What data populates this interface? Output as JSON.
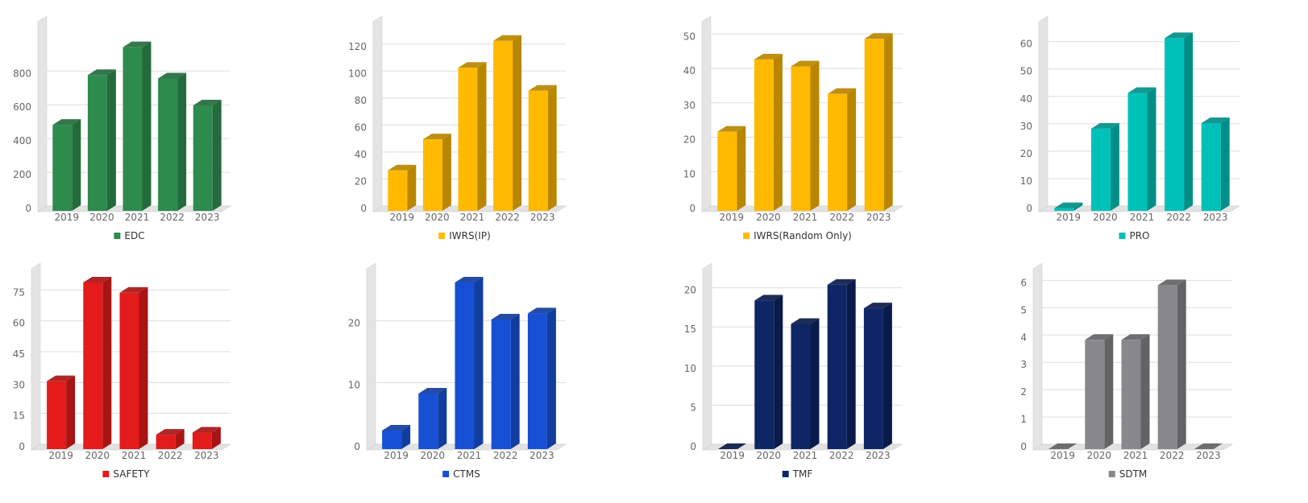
{
  "chart_data": [
    {
      "type": "bar",
      "legend": "EDC",
      "color": "#2e8b4e",
      "color_dark": "#236b3c",
      "categories": [
        "2019",
        "2020",
        "2021",
        "2022",
        "2023"
      ],
      "values": [
        510,
        805,
        970,
        785,
        625
      ],
      "ylim": [
        0,
        1040
      ],
      "yticks": [
        0,
        200,
        400,
        600,
        800
      ]
    },
    {
      "type": "bar",
      "legend": "IWRS(IP)",
      "color": "#ffba00",
      "color_dark": "#b88600",
      "categories": [
        "2019",
        "2020",
        "2021",
        "2022",
        "2023"
      ],
      "values": [
        30,
        53,
        106,
        126,
        89
      ],
      "ylim": [
        0,
        130
      ],
      "yticks": [
        0,
        20,
        40,
        60,
        80,
        100,
        120
      ]
    },
    {
      "type": "bar",
      "legend": "IWRS(Random Only)",
      "color": "#ffba00",
      "color_dark": "#b88600",
      "categories": [
        "2019",
        "2020",
        "2021",
        "2022",
        "2023"
      ],
      "values": [
        23,
        44,
        42,
        34,
        50
      ],
      "ylim": [
        0,
        51
      ],
      "yticks": [
        0,
        10,
        20,
        30,
        40,
        50
      ]
    },
    {
      "type": "bar",
      "legend": "PRO",
      "color": "#00c1b8",
      "color_dark": "#008f88",
      "categories": [
        "2019",
        "2020",
        "2021",
        "2022",
        "2023"
      ],
      "values": [
        1,
        30,
        43,
        63,
        32
      ],
      "ylim": [
        0,
        64
      ],
      "yticks": [
        0,
        10,
        20,
        30,
        40,
        50,
        60
      ]
    },
    {
      "type": "bar",
      "legend": "SAFETY",
      "color": "#e31b1b",
      "color_dark": "#a81414",
      "categories": [
        "2019",
        "2020",
        "2021",
        "2022",
        "2023"
      ],
      "values": [
        33,
        81,
        76,
        7,
        8
      ],
      "ylim": [
        0,
        81
      ],
      "yticks": [
        0,
        15,
        30,
        45,
        60,
        75
      ]
    },
    {
      "type": "bar",
      "legend": "CTMS",
      "color": "#1750d4",
      "color_dark": "#113d9e",
      "categories": [
        "2019",
        "2020",
        "2021",
        "2022",
        "2023"
      ],
      "values": [
        3,
        9,
        27,
        21,
        22
      ],
      "ylim": [
        0,
        27
      ],
      "yticks": [
        0,
        10,
        20
      ]
    },
    {
      "type": "bar",
      "legend": "TMF",
      "color": "#0e2666",
      "color_dark": "#0a1b4a",
      "categories": [
        "2019",
        "2020",
        "2021",
        "2022",
        "2023"
      ],
      "values": [
        0,
        19,
        16,
        21,
        18
      ],
      "ylim": [
        0,
        21.3
      ],
      "yticks": [
        0,
        5,
        10,
        15,
        20
      ]
    },
    {
      "type": "bar",
      "legend": "SDTM",
      "color": "#88888c",
      "color_dark": "#636366",
      "categories": [
        "2019",
        "2020",
        "2021",
        "2022",
        "2023"
      ],
      "values": [
        0,
        4,
        4,
        6,
        0
      ],
      "ylim": [
        0,
        6.1
      ],
      "yticks": [
        0,
        1,
        2,
        3,
        4,
        5,
        6
      ]
    }
  ]
}
